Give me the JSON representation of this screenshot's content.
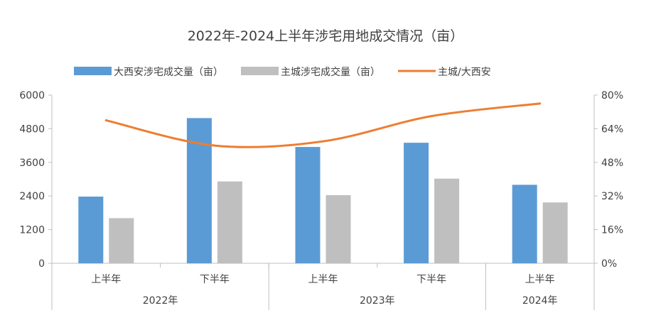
{
  "chart_data": {
    "type": "bar",
    "title": "2022年-2024上半年涉宅用地成交情况（亩）",
    "categories": [
      "上半年",
      "下半年",
      "上半年",
      "下半年",
      "上半年"
    ],
    "groups": [
      {
        "label": "2022年",
        "span": 2
      },
      {
        "label": "2023年",
        "span": 2
      },
      {
        "label": "2024年",
        "span": 1
      }
    ],
    "series": [
      {
        "name": "大西安涉宅成交量（亩）",
        "kind": "bar",
        "axis": "left",
        "color": "#5B9BD5",
        "values": [
          2380,
          5180,
          4150,
          4300,
          2800
        ]
      },
      {
        "name": "主城涉宅成交量（亩）",
        "kind": "bar",
        "axis": "left",
        "color": "#BFBFBF",
        "values": [
          1610,
          2920,
          2430,
          3020,
          2170
        ]
      },
      {
        "name": "主城/大西安",
        "kind": "line",
        "axis": "right",
        "color": "#ED7D31",
        "values": [
          0.68,
          0.56,
          0.58,
          0.7,
          0.76
        ]
      }
    ],
    "y_left": {
      "min": 0,
      "max": 6000,
      "ticks": [
        "0",
        "1200",
        "2400",
        "3600",
        "4800",
        "6000"
      ]
    },
    "y_right": {
      "min": 0,
      "max": 0.8,
      "ticks": [
        "0%",
        "16%",
        "32%",
        "48%",
        "64%",
        "80%"
      ]
    },
    "grid": false,
    "legend_position": "top"
  }
}
